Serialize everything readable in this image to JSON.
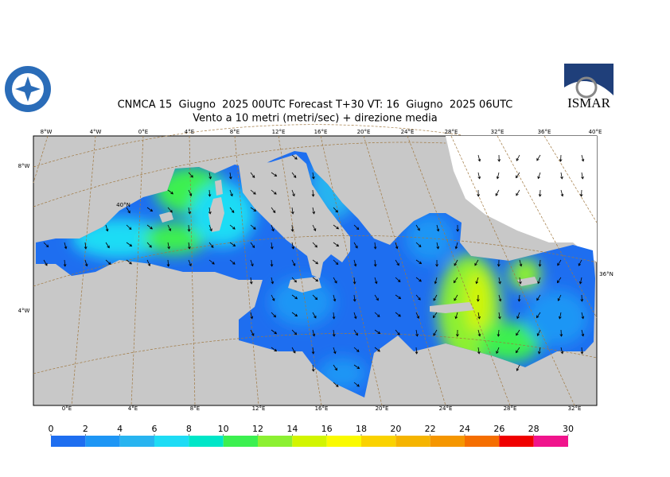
{
  "header": {
    "title": "CNMCA 15  Giugno  2025 00UTC Forecast T+30 VT: 16  Giugno  2025 06UTC",
    "subtitle": "Vento a 10 metri (metri/sec) + direzione media",
    "logo_text": "ISMAR"
  },
  "map": {
    "top_labels": [
      "8°W",
      "4°W",
      "0°E",
      "4°E",
      "8°E",
      "12°E",
      "16°E",
      "20°E",
      "24°E",
      "28°E",
      "32°E",
      "36°E",
      "40°E"
    ],
    "bottom_labels": [
      "0°E",
      "4°E",
      "8°E",
      "12°E",
      "16°E",
      "20°E",
      "24°E",
      "28°E",
      "32°E"
    ],
    "left_labels": [
      "8°W",
      "4°W"
    ],
    "inner_labels": [
      "40°N"
    ],
    "right_labels": [
      "36°N"
    ]
  },
  "colorbar": {
    "ticks": [
      0,
      2,
      4,
      6,
      8,
      10,
      12,
      14,
      16,
      18,
      20,
      22,
      24,
      26,
      28,
      30
    ],
    "colors": [
      "#1e6ef0",
      "#1e96f5",
      "#28b4f0",
      "#1edcf5",
      "#00e6c8",
      "#3cf050",
      "#8cf032",
      "#d2f500",
      "#fafa00",
      "#fad200",
      "#f5b400",
      "#f59600",
      "#f56e00",
      "#f00000",
      "#f0148c"
    ]
  }
}
